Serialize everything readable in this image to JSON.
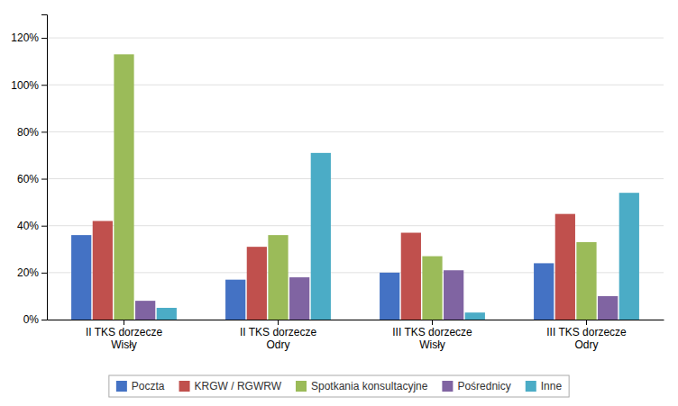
{
  "chart_data": {
    "type": "bar",
    "categories": [
      "II TKS dorzecze\nWisły",
      "II TKS dorzecze\nOdry",
      "III TKS dorzecze\nWisły",
      "III TKS dorzecze\nOdry"
    ],
    "series": [
      {
        "name": "Poczta",
        "color": "#4472c4",
        "values": [
          0.36,
          0.17,
          0.2,
          0.24
        ]
      },
      {
        "name": "KRGW / RGWRW",
        "color": "#c0504d",
        "values": [
          0.42,
          0.31,
          0.37,
          0.45
        ]
      },
      {
        "name": "Spotkania konsultacyjne",
        "color": "#9bbb59",
        "values": [
          1.13,
          0.36,
          0.27,
          0.33
        ]
      },
      {
        "name": "Pośrednicy",
        "color": "#8064a2",
        "values": [
          0.08,
          0.18,
          0.21,
          0.1
        ]
      },
      {
        "name": "Inne",
        "color": "#4bacc6",
        "values": [
          0.05,
          0.71,
          0.03,
          0.54
        ]
      }
    ],
    "ylim": [
      0.0,
      1.3
    ],
    "yticks": [
      {
        "value": 0.0,
        "label": "0%"
      },
      {
        "value": 0.2,
        "label": "20%"
      },
      {
        "value": 0.4,
        "label": "40%"
      },
      {
        "value": 0.6,
        "label": "60%"
      },
      {
        "value": 0.8,
        "label": "80%"
      },
      {
        "value": 1.0,
        "label": "100%"
      },
      {
        "value": 1.2,
        "label": "120%"
      }
    ],
    "grid": true,
    "legend": "bottom"
  }
}
